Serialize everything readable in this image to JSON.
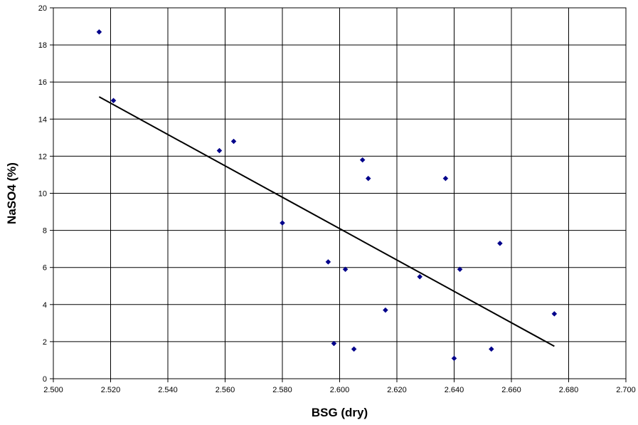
{
  "chart_data": {
    "type": "scatter",
    "title": "",
    "xlabel": "BSG (dry)",
    "ylabel": "NaSO4 (%)",
    "xlim": [
      2.5,
      2.7
    ],
    "ylim": [
      0,
      20
    ],
    "x_ticks": [
      "2.500",
      "2.520",
      "2.540",
      "2.560",
      "2.580",
      "2.600",
      "2.620",
      "2.640",
      "2.660",
      "2.680",
      "2.700"
    ],
    "y_ticks": [
      "0",
      "2",
      "4",
      "6",
      "8",
      "10",
      "12",
      "14",
      "16",
      "18",
      "20"
    ],
    "grid": true,
    "legend": "none",
    "series": [
      {
        "marker": "diamond",
        "color": "#00008B",
        "points": [
          {
            "x": 2.516,
            "y": 18.7
          },
          {
            "x": 2.521,
            "y": 15.0
          },
          {
            "x": 2.558,
            "y": 12.3
          },
          {
            "x": 2.563,
            "y": 12.8
          },
          {
            "x": 2.58,
            "y": 8.4
          },
          {
            "x": 2.596,
            "y": 6.3
          },
          {
            "x": 2.598,
            "y": 1.9
          },
          {
            "x": 2.602,
            "y": 5.9
          },
          {
            "x": 2.605,
            "y": 1.6
          },
          {
            "x": 2.608,
            "y": 11.8
          },
          {
            "x": 2.61,
            "y": 10.8
          },
          {
            "x": 2.616,
            "y": 3.7
          },
          {
            "x": 2.628,
            "y": 5.5
          },
          {
            "x": 2.637,
            "y": 10.8
          },
          {
            "x": 2.64,
            "y": 1.1
          },
          {
            "x": 2.642,
            "y": 5.9
          },
          {
            "x": 2.653,
            "y": 1.6
          },
          {
            "x": 2.656,
            "y": 7.3
          },
          {
            "x": 2.675,
            "y": 3.5
          }
        ]
      }
    ],
    "trendline": {
      "type": "linear",
      "color": "#000000",
      "x": [
        2.516,
        2.675
      ],
      "y": [
        15.2,
        1.75
      ]
    }
  }
}
